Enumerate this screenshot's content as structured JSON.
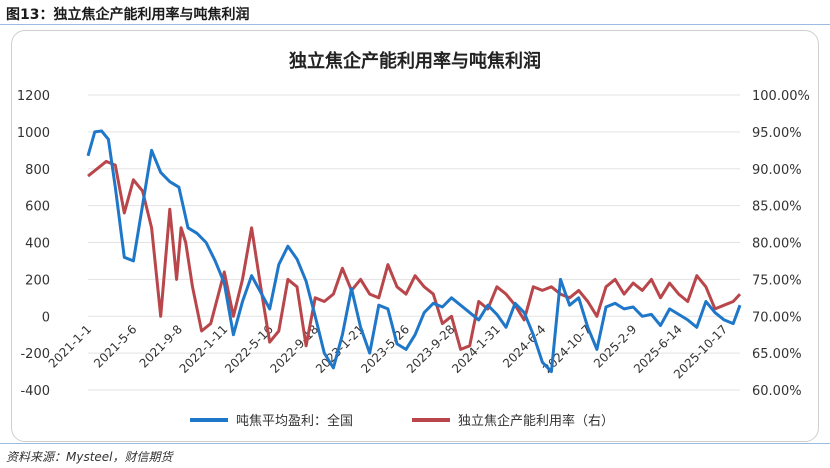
{
  "figure_label": "图13：独立焦企产能利用率与吨焦利润",
  "source": "资料来源：Mysteel，财信期货",
  "colors": {
    "profit": "#1f77c9",
    "util": "#b8464a",
    "grid": "#e3e3e3",
    "axis_text": "#333333"
  },
  "chart_data": {
    "type": "line",
    "title": "独立焦企产能利用率与吨焦利润",
    "left_axis": {
      "ylim": [
        -400,
        1200
      ],
      "ticks": [
        "1200",
        "1000",
        "800",
        "600",
        "400",
        "200",
        "0",
        "-200",
        "-400"
      ]
    },
    "right_axis": {
      "ylim": [
        60,
        100
      ],
      "ticks": [
        "100.00%",
        "95.00%",
        "90.00%",
        "85.00%",
        "80.00%",
        "75.00%",
        "70.00%",
        "65.00%",
        "60.00%"
      ]
    },
    "x_tick_labels": [
      "2021-1-1",
      "2021-5-6",
      "2021-9-8",
      "2022-1-11",
      "2022-5-16",
      "2022-9-18",
      "2023-1-21",
      "2023-5-26",
      "2023-9-28",
      "2024-1-31",
      "2024-6-4",
      "2024-10-7",
      "2025-2-9",
      "2025-6-14",
      "2025-10-17"
    ],
    "grid": true,
    "legend_position": "bottom",
    "series": [
      {
        "name": "吨焦平均盈利：全国",
        "axis": "left",
        "x": [
          0,
          0.15,
          0.3,
          0.45,
          0.6,
          0.8,
          1.0,
          1.2,
          1.4,
          1.6,
          1.8,
          2.0,
          2.2,
          2.4,
          2.6,
          2.8,
          3.0,
          3.2,
          3.4,
          3.6,
          3.8,
          4.0,
          4.2,
          4.4,
          4.6,
          4.8,
          5.0,
          5.2,
          5.4,
          5.6,
          5.8,
          6.0,
          6.2,
          6.4,
          6.6,
          6.8,
          7.0,
          7.2,
          7.4,
          7.6,
          7.8,
          8.0,
          8.2,
          8.4,
          8.6,
          8.8,
          9.0,
          9.2,
          9.4,
          9.6,
          9.8,
          10.0,
          10.2,
          10.4,
          10.6,
          10.8,
          11.0,
          11.2,
          11.4,
          11.6,
          11.8,
          12.0,
          12.2,
          12.4,
          12.6,
          12.8,
          13.0,
          13.2,
          13.4,
          13.6,
          13.8,
          14.0,
          14.2,
          14.35
        ],
        "values": [
          870,
          1000,
          1005,
          960,
          700,
          320,
          300,
          600,
          900,
          780,
          730,
          700,
          480,
          450,
          400,
          300,
          180,
          -100,
          80,
          220,
          130,
          40,
          280,
          380,
          310,
          190,
          0,
          -200,
          -280,
          -100,
          150,
          -60,
          -200,
          60,
          40,
          -150,
          -180,
          -100,
          20,
          70,
          50,
          100,
          60,
          20,
          -20,
          60,
          10,
          -60,
          70,
          20,
          -100,
          -250,
          -300,
          200,
          60,
          100,
          -60,
          -180,
          50,
          70,
          40,
          50,
          0,
          10,
          -50,
          40,
          10,
          -20,
          -60,
          80,
          20,
          -20,
          -40,
          60
        ]
      },
      {
        "name": "独立焦企产能利用率（右）",
        "axis": "right",
        "x": [
          0,
          0.2,
          0.4,
          0.6,
          0.8,
          1.0,
          1.2,
          1.4,
          1.6,
          1.8,
          1.95,
          2.05,
          2.15,
          2.3,
          2.5,
          2.7,
          3.0,
          3.2,
          3.4,
          3.6,
          3.8,
          4.0,
          4.2,
          4.4,
          4.6,
          4.8,
          5.0,
          5.2,
          5.4,
          5.6,
          5.8,
          6.0,
          6.2,
          6.4,
          6.6,
          6.8,
          7.0,
          7.2,
          7.4,
          7.6,
          7.8,
          8.0,
          8.2,
          8.4,
          8.6,
          8.8,
          9.0,
          9.2,
          9.4,
          9.6,
          9.8,
          10.0,
          10.2,
          10.4,
          10.6,
          10.8,
          11.0,
          11.2,
          11.4,
          11.6,
          11.8,
          12.0,
          12.2,
          12.4,
          12.6,
          12.8,
          13.0,
          13.2,
          13.4,
          13.6,
          13.8,
          14.0,
          14.2,
          14.35
        ],
        "values": [
          89.0,
          90.0,
          91.0,
          90.5,
          84.0,
          88.5,
          87.0,
          82.0,
          70.0,
          84.5,
          75.0,
          82.0,
          80.0,
          74.0,
          68.0,
          69.0,
          76.0,
          70.0,
          75.0,
          82.0,
          74.0,
          66.5,
          68.0,
          75.0,
          74.0,
          66.0,
          72.5,
          72.0,
          73.0,
          76.5,
          73.5,
          75.0,
          73.0,
          72.5,
          77.0,
          74.0,
          73.0,
          75.5,
          74.0,
          73.0,
          69.0,
          70.0,
          65.5,
          66.0,
          72.0,
          71.0,
          74.0,
          73.0,
          71.5,
          69.5,
          74.0,
          73.5,
          74.0,
          73.0,
          72.5,
          73.5,
          72.0,
          70.0,
          74.0,
          75.0,
          73.0,
          74.5,
          73.5,
          75.0,
          72.5,
          74.5,
          73.0,
          72.0,
          75.5,
          74.0,
          71.0,
          71.5,
          72.0,
          73.0
        ]
      }
    ]
  }
}
